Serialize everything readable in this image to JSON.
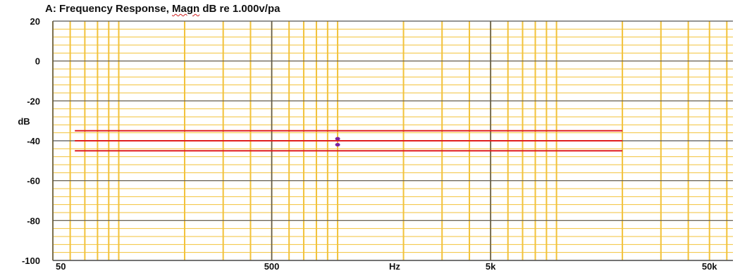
{
  "title_prefix": "A: Frequency Response, ",
  "title_magn": "Magn",
  "title_suffix": " dB re 1.000v/pa",
  "chart_data": {
    "type": "line",
    "title": "A: Frequency Response, Magn dB re 1.000v/pa",
    "xlabel": "Hz",
    "ylabel": "dB",
    "xscale": "log",
    "xlim": [
      50,
      64000
    ],
    "ylim": [
      -100,
      20
    ],
    "x_tick_labels": [
      {
        "value": 50,
        "label": "50"
      },
      {
        "value": 500,
        "label": "500"
      },
      {
        "value": 5000,
        "label": "5k"
      },
      {
        "value": 50000,
        "label": "50k"
      }
    ],
    "y_tick_labels": [
      {
        "value": 20,
        "label": "20"
      },
      {
        "value": 0,
        "label": "0"
      },
      {
        "value": -20,
        "label": "-20"
      },
      {
        "value": -40,
        "label": "-40"
      },
      {
        "value": -60,
        "label": "-60"
      },
      {
        "value": -80,
        "label": "-80"
      },
      {
        "value": -100,
        "label": "-100"
      }
    ],
    "grid": true,
    "series": [
      {
        "x": [
          63,
          20000
        ],
        "y": [
          -35,
          -35
        ],
        "color": "#e01e1e"
      },
      {
        "x": [
          63,
          20000
        ],
        "y": [
          -40,
          -40
        ],
        "color": "#e01e1e"
      },
      {
        "x": [
          63,
          20000
        ],
        "y": [
          -45,
          -45
        ],
        "color": "#e01e1e"
      }
    ],
    "markers": [
      {
        "x": 1000,
        "y": -39,
        "color": "#7a1fa0"
      },
      {
        "x": 1000,
        "y": -42,
        "color": "#7a1fa0"
      }
    ],
    "colors": {
      "minor_grid": "#f2c23a",
      "major_grid": "#555555",
      "background": "#ffffff"
    }
  }
}
